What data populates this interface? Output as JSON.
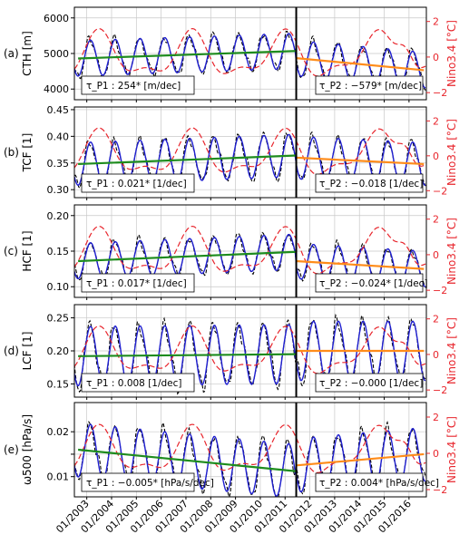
{
  "chart_data": [
    {
      "type": "line",
      "panel_label": "(a)",
      "ylabel": "CTH [m]",
      "ylabel_right": "Nino3.4 [°C]",
      "ylim": [
        3700,
        6300
      ],
      "yticks": [
        4000,
        5000,
        6000
      ],
      "ylim_right": [
        -2.4,
        2.8
      ],
      "yticks_right": [
        -2,
        0,
        2
      ],
      "base": 4950,
      "amp": 500,
      "trend_p1": {
        "start": 4860,
        "end": 5070,
        "label": "τ_P1 : 254* [m/dec]"
      },
      "trend_p2": {
        "start": 4870,
        "end": 4530,
        "label": "τ_P2 : −579* [m/dec]"
      }
    },
    {
      "type": "line",
      "panel_label": "(b)",
      "ylabel": "TCF [1]",
      "ylabel_right": "Nino3.4 [°C]",
      "ylim": [
        0.285,
        0.455
      ],
      "yticks": [
        0.3,
        0.35,
        0.4,
        0.45
      ],
      "ylim_right": [
        -2.4,
        2.8
      ],
      "yticks_right": [
        -2,
        0,
        2
      ],
      "base": 0.355,
      "amp": 0.04,
      "trend_p1": {
        "start": 0.348,
        "end": 0.364,
        "label": "τ_P1 : 0.021* [1/dec]"
      },
      "trend_p2": {
        "start": 0.36,
        "end": 0.348,
        "label": "τ_P2 : −0.018 [1/dec]"
      }
    },
    {
      "type": "line",
      "panel_label": "(c)",
      "ylabel": "HCF [1]",
      "ylabel_right": "Nino3.4 [°C]",
      "ylim": [
        0.085,
        0.215
      ],
      "yticks": [
        0.1,
        0.15,
        0.2
      ],
      "ylim_right": [
        -2.4,
        2.8
      ],
      "yticks_right": [
        -2,
        0,
        2
      ],
      "base": 0.142,
      "amp": 0.025,
      "trend_p1": {
        "start": 0.136,
        "end": 0.149,
        "label": "τ_P1 : 0.017* [1/dec]"
      },
      "trend_p2": {
        "start": 0.136,
        "end": 0.125,
        "label": "τ_P2 : −0.024* [1/dec]"
      }
    },
    {
      "type": "line",
      "panel_label": "(d)",
      "ylabel": "LCF [1]",
      "ylabel_right": "Nino3.4 [°C]",
      "ylim": [
        0.13,
        0.27
      ],
      "yticks": [
        0.15,
        0.2,
        0.25
      ],
      "ylim_right": [
        -2.4,
        2.8
      ],
      "yticks_right": [
        -2,
        0,
        2
      ],
      "base": 0.196,
      "amp": 0.045,
      "trend_p1": {
        "start": 0.192,
        "end": 0.195,
        "label": "τ_P1 : 0.008 [1/dec]"
      },
      "trend_p2": {
        "start": 0.2,
        "end": 0.2,
        "label": "τ_P2 : −0.000 [1/dec]"
      }
    },
    {
      "type": "line",
      "panel_label": "(e)",
      "ylabel": "ω500 [hPa/s]",
      "ylabel_right": "Nino3.4 [°C]",
      "ylim": [
        0.0055,
        0.0265
      ],
      "yticks": [
        0.01,
        0.015,
        0.02
      ],
      "yticklabels": [
        "0.01",
        "",
        "0.02"
      ],
      "ylim_right": [
        -2.4,
        2.8
      ],
      "yticks_right": [
        -2,
        0,
        2
      ],
      "base": 0.0145,
      "amp": 0.006,
      "trend_p1": {
        "start": 0.016,
        "end": 0.0112,
        "label": "τ_P1 : −0.005* [hPa/s/dec]"
      },
      "trend_p2": {
        "start": 0.0125,
        "end": 0.015,
        "label": "τ_P2 : 0.004* [hPa/s/dec]"
      }
    }
  ],
  "x_tick_labels": [
    "01/2003",
    "01/2004",
    "01/2005",
    "01/2006",
    "01/2007",
    "01/2008",
    "01/2009",
    "01/2010",
    "01/2011",
    "01/2012",
    "01/2013",
    "01/2014",
    "01/2015",
    "01/2016"
  ],
  "x_range_years": [
    2002.5,
    2016.7
  ],
  "breakpoint_year": 2011.45,
  "colors": {
    "observed": "#000000",
    "model": "#1f1fd0",
    "nino": "#e8262d",
    "trend_p1": "#1e8c1e",
    "trend_p2": "#ff8c1a",
    "grid": "#c8c8c8"
  }
}
